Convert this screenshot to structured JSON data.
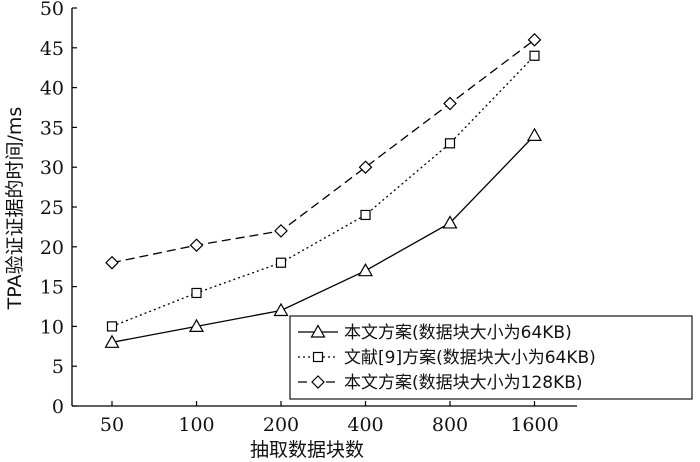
{
  "chart_data": {
    "type": "line",
    "title": "",
    "xlabel": "抽取数据块数",
    "ylabel": "TPA验证证据的时间/ms",
    "categories": [
      "50",
      "100",
      "200",
      "400",
      "800",
      "1600"
    ],
    "ylim": [
      0,
      50
    ],
    "yticks": [
      0,
      5,
      10,
      15,
      20,
      25,
      30,
      35,
      40,
      45,
      50
    ],
    "grid": false,
    "legend_position": "bottom-right",
    "series": [
      {
        "name": "本文方案(数据块大小为64KB)",
        "values": [
          8,
          10,
          12,
          17,
          23,
          34
        ],
        "line_style": "solid",
        "marker": "triangle",
        "color": "#000000"
      },
      {
        "name": "文献[9]方案(数据块大小为64KB)",
        "values": [
          10,
          14.2,
          18,
          24,
          33,
          44
        ],
        "line_style": "dotted",
        "marker": "square",
        "color": "#000000"
      },
      {
        "name": "本文方案(数据块大小为128KB)",
        "values": [
          18,
          20.2,
          22,
          30,
          38,
          46
        ],
        "line_style": "dashed",
        "marker": "diamond",
        "color": "#000000"
      }
    ]
  }
}
